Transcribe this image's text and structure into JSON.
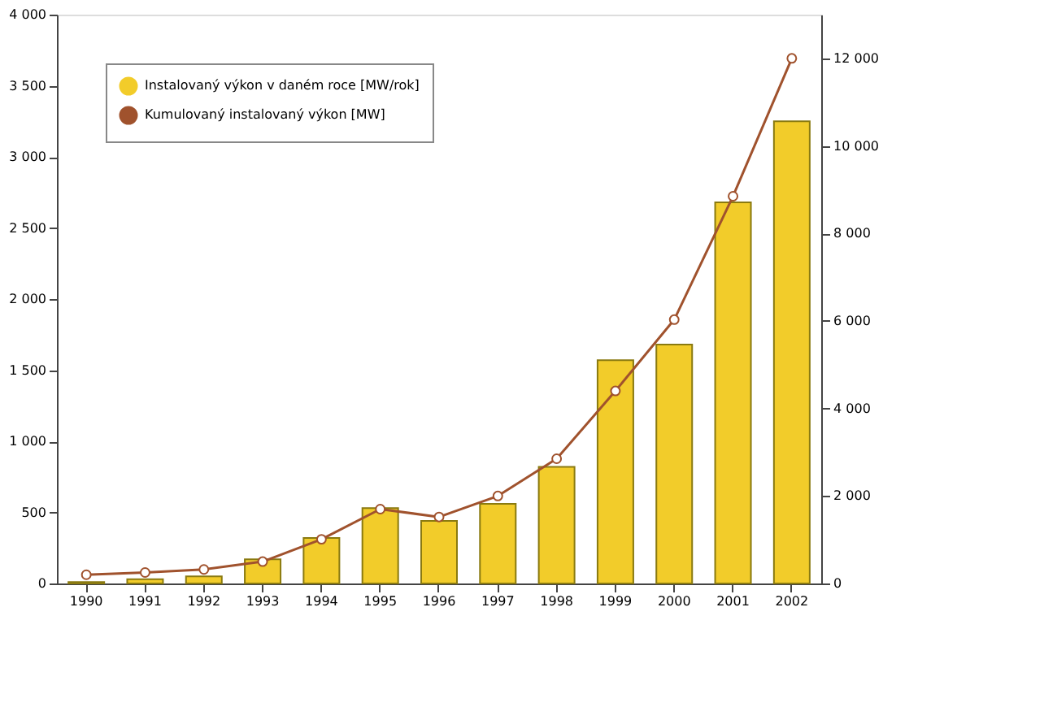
{
  "chart_data": {
    "type": "bar",
    "categories": [
      "1990",
      "1991",
      "1992",
      "1993",
      "1994",
      "1995",
      "1996",
      "1997",
      "1998",
      "1999",
      "2000",
      "2001",
      "2002"
    ],
    "series": [
      {
        "name": "Instalovaný výkon v daném roce [MW/rok]",
        "color": "#f2cc2a",
        "values": [
          10,
          30,
          50,
          170,
          320,
          530,
          440,
          560,
          820,
          1570,
          1680,
          2680,
          3250
        ]
      },
      {
        "name": "Kumulovaný instalovaný výkon [MW]",
        "type": "line",
        "axis": "y2",
        "color": "#a0522d",
        "marker": "circle",
        "values": [
          200,
          250,
          320,
          500,
          1010,
          1700,
          1520,
          2000,
          2850,
          4400,
          6030,
          8850,
          12000
        ]
      }
    ],
    "ylim": [
      0,
      4000
    ],
    "yticks": [
      0,
      {
        "value": 500,
        "label": "500"
      },
      {
        "value": 1000,
        "label": "1 000"
      },
      {
        "value": 1500,
        "label": "1 500"
      },
      {
        "value": 2000,
        "label": "2 000"
      },
      {
        "value": 2500,
        "label": "2 500"
      },
      {
        "value": 3000,
        "label": "3 000"
      },
      {
        "value": 3500,
        "label": "3 500"
      },
      {
        "value": 4000,
        "label": "4 000"
      }
    ],
    "y2lim": [
      0,
      13000
    ],
    "y2ticks": [
      0,
      {
        "value": 2000,
        "label": "2 000"
      },
      {
        "value": 4000,
        "label": "4 000"
      },
      {
        "value": 6000,
        "label": "6 000"
      },
      {
        "value": 8000,
        "label": "8 000"
      },
      {
        "value": 10000,
        "label": "10 000"
      },
      {
        "value": 12000,
        "label": "12 000"
      }
    ],
    "grid": false,
    "legend": "top left"
  }
}
